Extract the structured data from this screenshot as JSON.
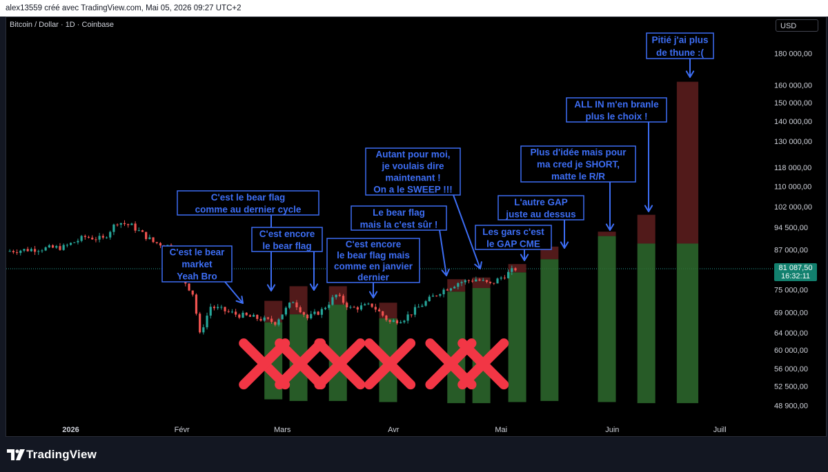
{
  "header": {
    "title": "alex13559 créé avec TradingView.com, Mai 05, 2026 09:27 UTC+2"
  },
  "symbol": {
    "label": "Bitcoin / Dollar · 1D · Coinbase"
  },
  "currency": {
    "label": "USD"
  },
  "brand": {
    "name": "TradingView"
  },
  "price_tag": {
    "value": "81 087,50",
    "timer": "16:32:11"
  },
  "colors": {
    "up": "#26a69a",
    "down": "#ef5350",
    "annotation": "#3d6ef5",
    "cross": "#f23645",
    "box_green": "#2e6b2e",
    "box_red": "#5a1d1d"
  },
  "chart_data": {
    "type": "candlestick",
    "y_scale": "log",
    "ylim": [
      46500,
      193000
    ],
    "y_ticks": [
      "180 000,00",
      "160 000,00",
      "150 000,00",
      "140 000,00",
      "130 000,00",
      "118 000,00",
      "110 000,00",
      "102 000,00",
      "94 500,00",
      "87 000,00",
      "75 000,00",
      "69 000,00",
      "64 000,00",
      "60 000,00",
      "56 000,00",
      "52 500,00",
      "48 900,00"
    ],
    "y_tick_values": [
      180000,
      160000,
      150000,
      140000,
      130000,
      118000,
      110000,
      102000,
      94500,
      87000,
      75000,
      69000,
      64000,
      60000,
      56000,
      52500,
      48900
    ],
    "x_labels": [
      {
        "label": "2026",
        "date": "2026-01-01"
      },
      {
        "label": "Févr",
        "date": "2026-02-01"
      },
      {
        "label": "Mars",
        "date": "2026-03-01"
      },
      {
        "label": "Avr",
        "date": "2026-04-01"
      },
      {
        "label": "Mai",
        "date": "2026-05-01"
      },
      {
        "label": "Juin",
        "date": "2026-06-01"
      },
      {
        "label": "Juill",
        "date": "2026-07-01"
      }
    ],
    "x_start": "2025-12-14",
    "x_end": "2026-07-15",
    "last_price": 81087.5,
    "price_path": [
      {
        "date": "2025-12-14",
        "price": 86500
      },
      {
        "date": "2025-12-22",
        "price": 87200
      },
      {
        "date": "2025-12-30",
        "price": 87800
      },
      {
        "date": "2026-01-05",
        "price": 91200
      },
      {
        "date": "2026-01-10",
        "price": 90500
      },
      {
        "date": "2026-01-14",
        "price": 96500
      },
      {
        "date": "2026-01-18",
        "price": 95000
      },
      {
        "date": "2026-01-24",
        "price": 89500
      },
      {
        "date": "2026-01-29",
        "price": 88000
      },
      {
        "date": "2026-02-01",
        "price": 78500
      },
      {
        "date": "2026-02-04",
        "price": 74000
      },
      {
        "date": "2026-02-06",
        "price": 63500
      },
      {
        "date": "2026-02-09",
        "price": 70500
      },
      {
        "date": "2026-02-16",
        "price": 68500
      },
      {
        "date": "2026-02-22",
        "price": 67500
      },
      {
        "date": "2026-02-27",
        "price": 66500
      },
      {
        "date": "2026-03-04",
        "price": 72000
      },
      {
        "date": "2026-03-08",
        "price": 67500
      },
      {
        "date": "2026-03-12",
        "price": 69500
      },
      {
        "date": "2026-03-16",
        "price": 73500
      },
      {
        "date": "2026-03-20",
        "price": 70000
      },
      {
        "date": "2026-03-26",
        "price": 70800
      },
      {
        "date": "2026-03-31",
        "price": 66500
      },
      {
        "date": "2026-04-04",
        "price": 67500
      },
      {
        "date": "2026-04-09",
        "price": 71000
      },
      {
        "date": "2026-04-14",
        "price": 74500
      },
      {
        "date": "2026-04-19",
        "price": 77000
      },
      {
        "date": "2026-04-24",
        "price": 78000
      },
      {
        "date": "2026-04-28",
        "price": 76500
      },
      {
        "date": "2026-05-05",
        "price": 81087.5
      }
    ],
    "projection_boxes": [
      {
        "start": "2026-02-24",
        "end": "2026-03-01",
        "low": 50000,
        "mid": 66500,
        "high": 72000
      },
      {
        "start": "2026-03-03",
        "end": "2026-03-08",
        "low": 49700,
        "mid": 68500,
        "high": 76000
      },
      {
        "start": "2026-03-14",
        "end": "2026-03-19",
        "low": 49700,
        "mid": 71000,
        "high": 76000
      },
      {
        "start": "2026-03-28",
        "end": "2026-04-02",
        "low": 49500,
        "mid": 67500,
        "high": 71500
      },
      {
        "start": "2026-04-16",
        "end": "2026-04-21",
        "low": 49300,
        "mid": 74500,
        "high": 78000
      },
      {
        "start": "2026-04-23",
        "end": "2026-04-28",
        "low": 49300,
        "mid": 75500,
        "high": 78500
      },
      {
        "start": "2026-05-03",
        "end": "2026-05-08",
        "low": 49500,
        "mid": 80000,
        "high": 82500
      },
      {
        "start": "2026-05-12",
        "end": "2026-05-17",
        "low": 49700,
        "mid": 84000,
        "high": 88000
      },
      {
        "start": "2026-05-28",
        "end": "2026-06-02",
        "low": 49500,
        "mid": 91500,
        "high": 93000
      },
      {
        "start": "2026-06-08",
        "end": "2026-06-13",
        "low": 49300,
        "mid": 89000,
        "high": 99000
      },
      {
        "start": "2026-06-19",
        "end": "2026-06-25",
        "low": 49300,
        "mid": 89000,
        "high": 162000
      }
    ],
    "crosses": [
      {
        "date": "2026-02-24",
        "price": 57000
      },
      {
        "date": "2026-03-06",
        "price": 57000
      },
      {
        "date": "2026-03-17",
        "price": 57000
      },
      {
        "date": "2026-03-31",
        "price": 57000
      },
      {
        "date": "2026-04-17",
        "price": 57000
      },
      {
        "date": "2026-04-26",
        "price": 57000
      }
    ],
    "annotations": [
      {
        "lines": [
          "C'est le bear",
          "market",
          "Yeah Bro"
        ]
      },
      {
        "lines": [
          "C'est le bear flag",
          "comme au dernier cycle"
        ]
      },
      {
        "lines": [
          "C'est encore",
          "le bear flag"
        ]
      },
      {
        "lines": [
          "C'est encore",
          "le bear flag mais",
          "comme en janvier",
          "dernier"
        ]
      },
      {
        "lines": [
          "Le bear flag",
          "mais la c'est sûr !"
        ]
      },
      {
        "lines": [
          "Autant pour moi,",
          "je voulais dire",
          "maintenant !",
          "On a le SWEEP !!!"
        ]
      },
      {
        "lines": [
          "Les gars c'est",
          "le GAP CME"
        ]
      },
      {
        "lines": [
          "L'autre GAP",
          "juste au dessus"
        ]
      },
      {
        "lines": [
          "Plus d'idée mais pour",
          "ma cred je SHORT,",
          "matte le R/R"
        ]
      },
      {
        "lines": [
          "ALL IN m'en branle",
          "plus le choix !"
        ]
      },
      {
        "lines": [
          "Pitié j'ai plus",
          "de thune :("
        ]
      }
    ]
  }
}
